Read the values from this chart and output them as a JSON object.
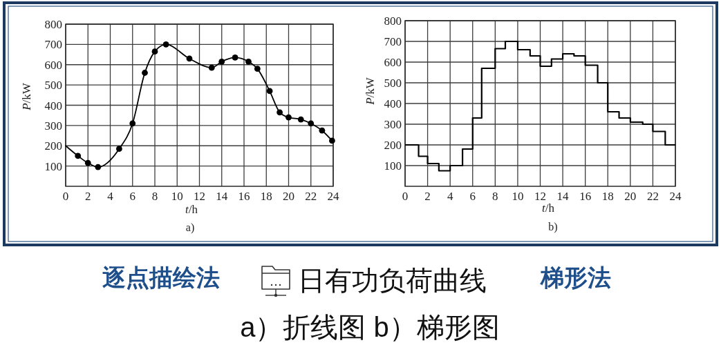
{
  "chart_data": [
    {
      "type": "line",
      "xlabel": "t/h",
      "ylabel": "P/kW",
      "annotations": [
        "a)"
      ],
      "xlim": [
        0,
        24
      ],
      "xticks": [
        0,
        2,
        4,
        6,
        8,
        10,
        12,
        14,
        16,
        18,
        20,
        22,
        24
      ],
      "ylim": [
        0,
        800
      ],
      "yticks": [
        100,
        200,
        300,
        400,
        500,
        600,
        700,
        800
      ],
      "grid": true,
      "line_style": "solid",
      "series": [
        {
          "type": "line",
          "marker": "none",
          "color": "#000000",
          "x": [
            0,
            1.1,
            2,
            2.9,
            4.8,
            6,
            7.1,
            8,
            9,
            11.1,
            13.1,
            14,
            15.2,
            16.4,
            17.2,
            18.3,
            19.2,
            20,
            21.1,
            22,
            23,
            23.9
          ],
          "values": [
            200,
            150,
            115,
            95,
            185,
            310,
            560,
            665,
            700,
            630,
            585,
            615,
            635,
            615,
            580,
            470,
            365,
            340,
            330,
            310,
            275,
            225
          ]
        },
        {
          "type": "scatter",
          "marker": "circle",
          "color": "#000000",
          "x": [
            1.1,
            2,
            2.9,
            4.8,
            6,
            7.1,
            8,
            9,
            11.1,
            13.1,
            14,
            15.2,
            16.4,
            17.2,
            18.3,
            19.2,
            20,
            21.1,
            22,
            23,
            23.9
          ],
          "values": [
            150,
            115,
            95,
            185,
            310,
            560,
            665,
            700,
            630,
            585,
            615,
            635,
            615,
            580,
            470,
            365,
            340,
            330,
            310,
            275,
            225
          ]
        }
      ]
    },
    {
      "type": "step",
      "xlabel": "t/h",
      "ylabel": "P/kW",
      "annotations": [
        "b)"
      ],
      "xlim": [
        0,
        24
      ],
      "xticks": [
        0,
        2,
        4,
        6,
        8,
        10,
        12,
        14,
        16,
        18,
        20,
        22,
        24
      ],
      "ylim": [
        0,
        800
      ],
      "yticks": [
        100,
        200,
        300,
        400,
        500,
        600,
        700,
        800
      ],
      "grid": true,
      "line_style": "solid",
      "series": [
        {
          "color": "#000000",
          "x": [
            0,
            1.2,
            2,
            3,
            4,
            5.1,
            6,
            6.8,
            8,
            8.9,
            10,
            11.1,
            12,
            13,
            14,
            15,
            16,
            17.1,
            18,
            19,
            20,
            21.1,
            22,
            23.1,
            24
          ],
          "values": [
            200,
            145,
            110,
            75,
            100,
            180,
            330,
            570,
            665,
            700,
            660,
            630,
            580,
            615,
            640,
            630,
            585,
            500,
            360,
            330,
            310,
            300,
            265,
            200,
            200
          ]
        }
      ]
    },
    {
      "type": "other",
      "title": "日有功负荷曲线",
      "annotations": [
        "逐点描绘法",
        "梯形法",
        "a）折线图 b）梯形图"
      ]
    }
  ]
}
